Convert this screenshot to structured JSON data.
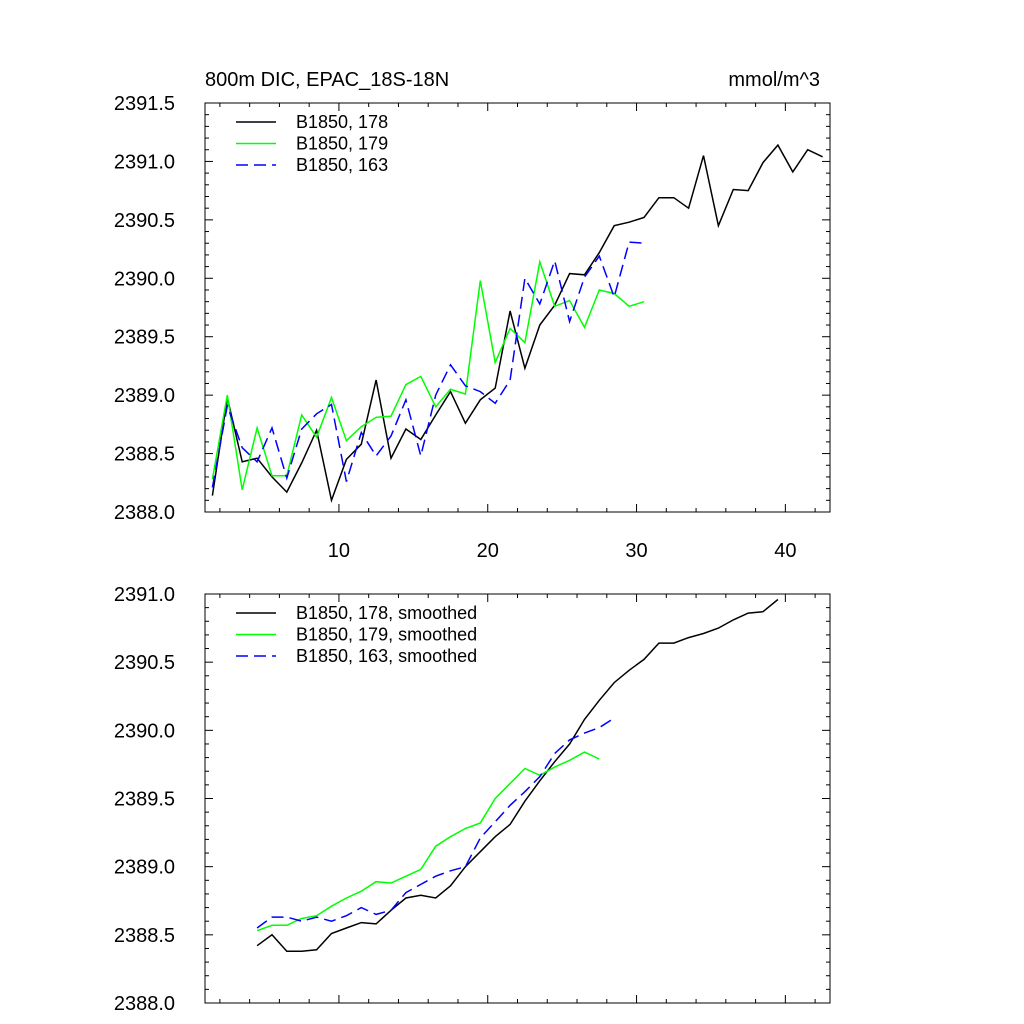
{
  "chart_data": [
    {
      "type": "line",
      "title": "800m DIC, EPAC_18S-18N",
      "units": "mmol/m^3",
      "xlabel": "",
      "ylabel": "",
      "xlim": [
        1,
        43
      ],
      "ylim": [
        2388.0,
        2391.5
      ],
      "x_ticks": [
        10,
        20,
        30,
        40
      ],
      "y_ticks": [
        2388.0,
        2388.5,
        2389.0,
        2389.5,
        2390.0,
        2390.5,
        2391.0,
        2391.5
      ],
      "grid": false,
      "legend_position": "top-left",
      "series": [
        {
          "name": "B1850, 178",
          "color": "#000000",
          "dash": "solid",
          "x_start": 1.5,
          "values": [
            2388.14,
            2388.98,
            2388.43,
            2388.46,
            2388.3,
            2388.17,
            2388.42,
            2388.7,
            2388.1,
            2388.45,
            2388.58,
            2389.13,
            2388.46,
            2388.71,
            2388.62,
            2388.83,
            2389.03,
            2388.76,
            2388.96,
            2389.06,
            2389.72,
            2389.23,
            2389.6,
            2389.77,
            2390.04,
            2390.03,
            2390.22,
            2390.45,
            2390.48,
            2390.52,
            2390.69,
            2390.69,
            2390.6,
            2391.05,
            2390.45,
            2390.76,
            2390.75,
            2390.99,
            2391.14,
            2390.91,
            2391.1,
            2391.04
          ]
        },
        {
          "name": "B1850, 179",
          "color": "#00ff00",
          "dash": "solid",
          "x_start": 1.5,
          "values": [
            2388.28,
            2389.0,
            2388.19,
            2388.72,
            2388.31,
            2388.31,
            2388.83,
            2388.64,
            2388.98,
            2388.61,
            2388.73,
            2388.81,
            2388.82,
            2389.09,
            2389.16,
            2388.9,
            2389.05,
            2389.01,
            2389.98,
            2389.28,
            2389.57,
            2389.45,
            2390.14,
            2389.76,
            2389.81,
            2389.58,
            2389.9,
            2389.87,
            2389.76,
            2389.8
          ]
        },
        {
          "name": "B1850, 163",
          "color": "#0000ff",
          "dash": "dashed",
          "x_start": 1.5,
          "values": [
            2388.21,
            2388.91,
            2388.55,
            2388.43,
            2388.72,
            2388.29,
            2388.71,
            2388.84,
            2388.92,
            2388.26,
            2388.68,
            2388.48,
            2388.65,
            2388.96,
            2388.48,
            2389.0,
            2389.26,
            2389.08,
            2389.03,
            2388.93,
            2389.13,
            2390.0,
            2389.78,
            2390.15,
            2389.63,
            2390.01,
            2390.19,
            2389.84,
            2390.31,
            2390.3
          ]
        }
      ]
    },
    {
      "type": "line",
      "title": "",
      "xlabel": "",
      "ylabel": "",
      "xlim": [
        1,
        43
      ],
      "ylim": [
        2388.0,
        2391.0
      ],
      "x_ticks": [
        10,
        20,
        30,
        40
      ],
      "y_ticks": [
        2388.0,
        2388.5,
        2389.0,
        2389.5,
        2390.0,
        2390.5,
        2391.0
      ],
      "grid": false,
      "legend_position": "top-left",
      "series": [
        {
          "name": "B1850, 178, smoothed",
          "color": "#000000",
          "dash": "solid",
          "x_start": 4.5,
          "values": [
            2388.42,
            2388.5,
            2388.38,
            2388.38,
            2388.39,
            2388.51,
            2388.55,
            2388.59,
            2388.58,
            2388.68,
            2388.77,
            2388.79,
            2388.77,
            2388.86,
            2389.0,
            2389.11,
            2389.22,
            2389.31,
            2389.48,
            2389.63,
            2389.77,
            2389.9,
            2390.08,
            2390.22,
            2390.35,
            2390.44,
            2390.52,
            2390.64,
            2390.64,
            2390.68,
            2390.71,
            2390.75,
            2390.81,
            2390.86,
            2390.87,
            2390.96
          ]
        },
        {
          "name": "B1850, 179, smoothed",
          "color": "#00ff00",
          "dash": "solid",
          "x_start": 4.5,
          "values": [
            2388.53,
            2388.57,
            2388.57,
            2388.62,
            2388.64,
            2388.71,
            2388.77,
            2388.82,
            2388.89,
            2388.88,
            2388.93,
            2388.98,
            2389.15,
            2389.22,
            2389.28,
            2389.32,
            2389.5,
            2389.61,
            2389.72,
            2389.67,
            2389.73,
            2389.78,
            2389.84,
            2389.79
          ]
        },
        {
          "name": "B1850, 163, smoothed",
          "color": "#0000ff",
          "dash": "dashed",
          "x_start": 4.5,
          "values": [
            2388.55,
            2388.63,
            2388.63,
            2388.6,
            2388.63,
            2388.6,
            2388.64,
            2388.7,
            2388.65,
            2388.68,
            2388.81,
            2388.87,
            2388.93,
            2388.97,
            2389.0,
            2389.21,
            2389.33,
            2389.45,
            2389.55,
            2389.66,
            2389.83,
            2389.93,
            2389.98,
            2390.02,
            2390.09
          ]
        }
      ]
    }
  ]
}
